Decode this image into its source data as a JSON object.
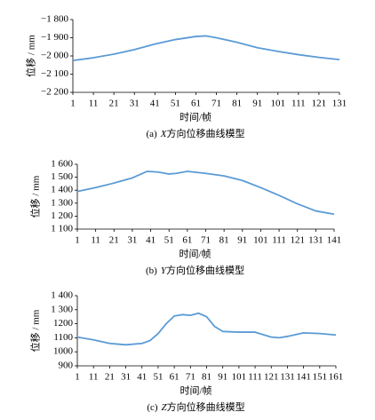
{
  "chart_data": [
    {
      "type": "line",
      "x_label": "时间/帧",
      "y_label": "位移 / mm",
      "caption": {
        "label": "(a)",
        "axis": "X",
        "text": "方向位移曲线模型"
      },
      "x": [
        1,
        11,
        21,
        31,
        41,
        51,
        61,
        66,
        71,
        81,
        91,
        101,
        111,
        121,
        131
      ],
      "series": [
        {
          "color": "#5b9bd5",
          "values": [
            -2025,
            -2010,
            -1990,
            -1965,
            -1935,
            -1910,
            -1893,
            -1890,
            -1900,
            -1925,
            -1955,
            -1975,
            -1993,
            -2008,
            -2020
          ]
        }
      ],
      "xlim": [
        1,
        131
      ],
      "xticks": [
        1,
        11,
        21,
        31,
        41,
        51,
        61,
        71,
        81,
        91,
        101,
        111,
        121,
        131
      ],
      "ylim": [
        -2200,
        -1800
      ],
      "yticks": [
        {
          "value": -2200,
          "label": "−2 200"
        },
        {
          "value": -2100,
          "label": "−2 100"
        },
        {
          "value": -2000,
          "label": "−2 000"
        },
        {
          "value": -1900,
          "label": "−1 900"
        },
        {
          "value": -1800,
          "label": "−1 800"
        }
      ]
    },
    {
      "type": "line",
      "x_label": "时间/帧",
      "y_label": "位移 / mm",
      "caption": {
        "label": "(b)",
        "axis": "Y",
        "text": "方向位移曲线模型"
      },
      "x": [
        1,
        11,
        21,
        31,
        39,
        45,
        51,
        55,
        61,
        71,
        81,
        91,
        101,
        111,
        121,
        131,
        141
      ],
      "series": [
        {
          "color": "#5b9bd5",
          "values": [
            1390,
            1420,
            1455,
            1495,
            1545,
            1540,
            1525,
            1530,
            1545,
            1530,
            1510,
            1475,
            1420,
            1360,
            1295,
            1240,
            1215
          ]
        }
      ],
      "xlim": [
        1,
        141
      ],
      "xticks": [
        1,
        11,
        21,
        31,
        41,
        51,
        61,
        71,
        81,
        91,
        101,
        111,
        121,
        131,
        141
      ],
      "ylim": [
        1100,
        1600
      ],
      "yticks": [
        {
          "value": 1100,
          "label": "1 100"
        },
        {
          "value": 1200,
          "label": "1 200"
        },
        {
          "value": 1300,
          "label": "1 300"
        },
        {
          "value": 1400,
          "label": "1 400"
        },
        {
          "value": 1500,
          "label": "1 500"
        },
        {
          "value": 1600,
          "label": "1 600"
        }
      ]
    },
    {
      "type": "line",
      "x_label": "时间/帧",
      "y_label": "位移 / mm",
      "caption": {
        "label": "(c)",
        "axis": "Z",
        "text": "方向位移曲线模型"
      },
      "x": [
        1,
        11,
        21,
        31,
        41,
        46,
        51,
        56,
        61,
        66,
        71,
        76,
        81,
        86,
        91,
        101,
        111,
        121,
        126,
        131,
        141,
        151,
        161
      ],
      "series": [
        {
          "color": "#5b9bd5",
          "values": [
            1105,
            1085,
            1060,
            1050,
            1060,
            1080,
            1130,
            1200,
            1255,
            1265,
            1260,
            1275,
            1250,
            1180,
            1145,
            1140,
            1140,
            1105,
            1100,
            1110,
            1135,
            1130,
            1120
          ]
        }
      ],
      "xlim": [
        1,
        161
      ],
      "xticks": [
        1,
        11,
        21,
        31,
        41,
        51,
        61,
        71,
        81,
        91,
        101,
        111,
        121,
        131,
        141,
        151,
        161
      ],
      "ylim": [
        900,
        1400
      ],
      "yticks": [
        900,
        1000,
        1100,
        1200,
        {
          "value": 1300,
          "label": "1 300"
        },
        {
          "value": 1400,
          "label": "1 400"
        }
      ]
    }
  ]
}
